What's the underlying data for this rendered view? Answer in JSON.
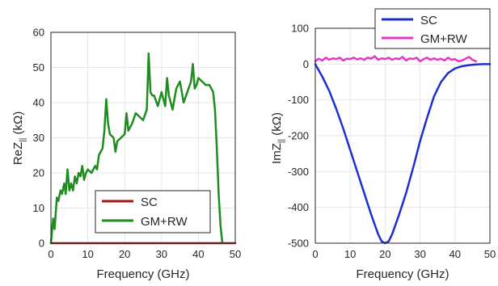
{
  "chart_data": [
    {
      "type": "line",
      "title": "",
      "xlabel": "Frequency (GHz)",
      "ylabel_parts": [
        "ReZ",
        "||",
        " (kΩ)"
      ],
      "xlim": [
        0,
        50
      ],
      "ylim": [
        0,
        60
      ],
      "xticks": [
        0,
        10,
        20,
        30,
        40,
        50
      ],
      "yticks": [
        0,
        10,
        20,
        30,
        40,
        50,
        60
      ],
      "grid": true,
      "legend_position": "bottom-center",
      "series": [
        {
          "name": "SC",
          "color": "#a31515",
          "x": [
            0,
            46.5,
            50
          ],
          "y": [
            0,
            0,
            0
          ]
        },
        {
          "name": "GM+RW",
          "color": "#1f8c1f",
          "x": [
            0,
            0.6,
            1.0,
            1.6,
            2.0,
            2.6,
            3.0,
            3.6,
            4.0,
            4.5,
            5.0,
            5.5,
            6.0,
            6.5,
            7.0,
            7.5,
            8.0,
            8.5,
            9.0,
            9.5,
            10.0,
            11.0,
            12.0,
            12.5,
            13.0,
            14.0,
            14.5,
            15.0,
            15.5,
            16.0,
            17.0,
            17.5,
            18.0,
            19.0,
            20.0,
            20.5,
            21.0,
            22.0,
            23.0,
            24.0,
            25.0,
            26.0,
            26.5,
            27.0,
            27.5,
            28.0,
            29.0,
            30.0,
            31.0,
            31.5,
            32.0,
            33.0,
            34.0,
            35.0,
            36.0,
            37.0,
            38.0,
            38.5,
            39.0,
            39.5,
            40.0,
            41.0,
            42.0,
            43.0,
            44.0,
            44.5,
            45.0,
            45.5,
            46.0,
            46.5
          ],
          "y": [
            0,
            7,
            4,
            13,
            12,
            15,
            14,
            17,
            14,
            21,
            15,
            17,
            15,
            19,
            17,
            20,
            19,
            22,
            18,
            20,
            21,
            20,
            22,
            21,
            25,
            27,
            32,
            41,
            34,
            31,
            30,
            26,
            29,
            30,
            31,
            37,
            32,
            34,
            37,
            36,
            35,
            38,
            54,
            43,
            42,
            42,
            39,
            43,
            39,
            47,
            42,
            38,
            44,
            46,
            40,
            43,
            46,
            51,
            44,
            45,
            47,
            46,
            45,
            45,
            43,
            38,
            27,
            14,
            5,
            0
          ]
        }
      ]
    },
    {
      "type": "line",
      "title": "",
      "xlabel": "Frequency (GHz)",
      "ylabel_parts": [
        "ImZ",
        "||",
        " (kΩ)"
      ],
      "xlim": [
        0,
        50
      ],
      "ylim": [
        -500,
        100
      ],
      "xticks": [
        0,
        10,
        20,
        30,
        40,
        50
      ],
      "yticks": [
        -500,
        -400,
        -300,
        -200,
        -100,
        0,
        100
      ],
      "grid": true,
      "legend_position": "top-right",
      "series": [
        {
          "name": "SC",
          "color": "#1f2fcf",
          "x": [
            0,
            2,
            4,
            6,
            8,
            10,
            12,
            14,
            16,
            18,
            19,
            20,
            21,
            22,
            24,
            26,
            28,
            30,
            32,
            34,
            36,
            38,
            40,
            42,
            44,
            46,
            48,
            50
          ],
          "y": [
            0,
            -35,
            -75,
            -125,
            -180,
            -240,
            -300,
            -360,
            -420,
            -475,
            -495,
            -500,
            -495,
            -475,
            -420,
            -360,
            -290,
            -215,
            -150,
            -90,
            -50,
            -25,
            -12,
            -6,
            -3,
            -1,
            0,
            0
          ]
        },
        {
          "name": "GM+RW",
          "color": "#e633c8",
          "x": [
            0,
            1,
            2,
            3,
            4,
            5,
            6,
            7,
            8,
            9,
            10,
            11,
            12,
            13,
            14,
            15,
            16,
            17,
            18,
            19,
            20,
            21,
            22,
            23,
            24,
            25,
            26,
            27,
            28,
            29,
            30,
            31,
            32,
            33,
            34,
            35,
            36,
            37,
            38,
            39,
            40,
            41,
            42,
            43,
            44,
            45,
            46
          ],
          "y": [
            8,
            15,
            10,
            18,
            12,
            16,
            14,
            18,
            10,
            15,
            14,
            18,
            13,
            16,
            12,
            18,
            15,
            22,
            12,
            16,
            14,
            18,
            12,
            16,
            14,
            20,
            10,
            16,
            14,
            18,
            8,
            14,
            18,
            12,
            16,
            12,
            15,
            10,
            18,
            12,
            14,
            8,
            10,
            15,
            20,
            12,
            8
          ]
        }
      ]
    }
  ]
}
